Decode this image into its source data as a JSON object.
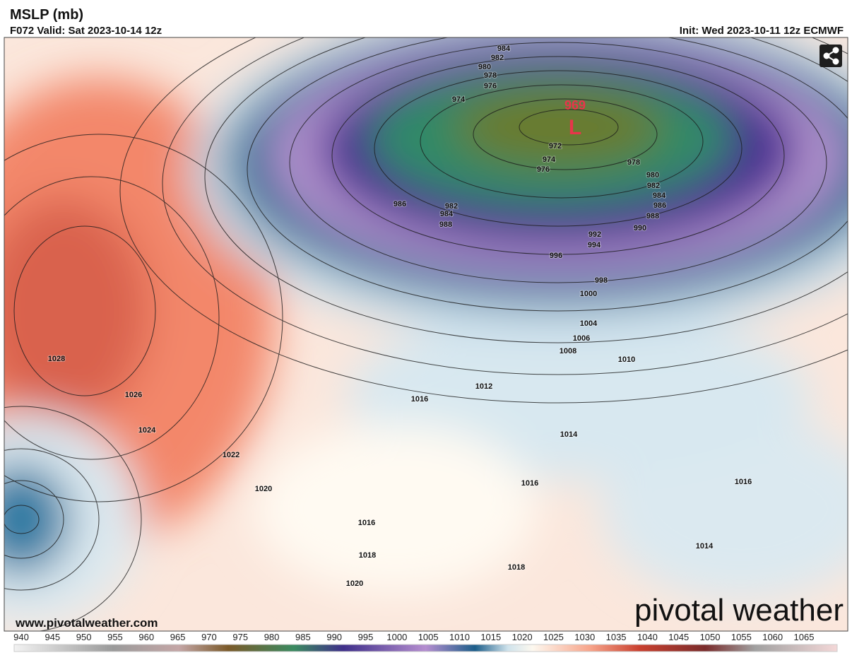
{
  "header": {
    "title": "MSLP (mb)",
    "valid": "F072 Valid: Sat 2023-10-14 12z",
    "init": "Init: Wed 2023-10-11 12z ECMWF"
  },
  "low_center": {
    "value": "969",
    "symbol": "L"
  },
  "isobar_labels": [
    984,
    982,
    980,
    978,
    976,
    974,
    972,
    974,
    976,
    978,
    980,
    982,
    984,
    986,
    988,
    990,
    992,
    994,
    996,
    998,
    1000,
    986,
    982,
    984,
    988,
    1004,
    1006,
    1008,
    1010,
    1012,
    1016,
    1014,
    1016,
    1016,
    1014,
    1016,
    1018,
    1018,
    1020,
    1020,
    1022,
    1024,
    1026,
    1028
  ],
  "footer": {
    "website": "www.pivotalweather.com",
    "logo": "pivotal weather"
  },
  "colorbar": {
    "ticks": [
      940,
      945,
      950,
      955,
      960,
      965,
      970,
      975,
      980,
      985,
      990,
      995,
      1000,
      1005,
      1010,
      1015,
      1020,
      1025,
      1030,
      1035,
      1040,
      1045,
      1050,
      1055,
      1060,
      1065
    ]
  }
}
